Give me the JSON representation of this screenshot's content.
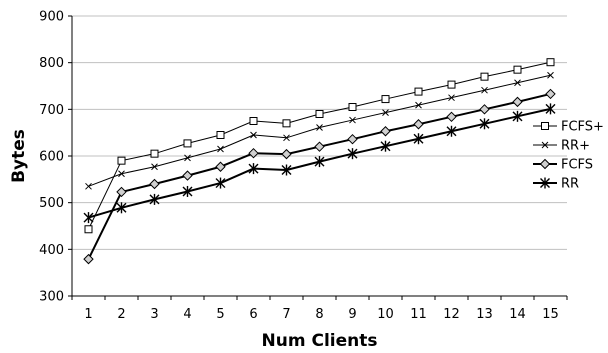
{
  "chart_data": {
    "type": "line",
    "xlabel": "Num Clients",
    "ylabel": "Bytes",
    "ylim": [
      300,
      900
    ],
    "yticks": [
      300,
      400,
      500,
      600,
      700,
      800,
      900
    ],
    "categories": [
      1,
      2,
      3,
      4,
      5,
      6,
      7,
      8,
      9,
      10,
      11,
      12,
      13,
      14,
      15
    ],
    "grid": "horizontal",
    "legend_position": "right",
    "series": [
      {
        "name": "FCFS+",
        "marker": "square",
        "line_width": 1,
        "values": [
          443,
          590,
          605,
          627,
          645,
          675,
          670,
          690,
          705,
          722,
          738,
          753,
          770,
          785,
          801
        ]
      },
      {
        "name": "RR+",
        "marker": "x",
        "line_width": 1,
        "values": [
          535,
          562,
          577,
          596,
          615,
          645,
          639,
          661,
          677,
          693,
          709,
          725,
          741,
          757,
          773
        ]
      },
      {
        "name": "FCFS",
        "marker": "diamond",
        "line_width": 2,
        "values": [
          379,
          523,
          540,
          558,
          577,
          606,
          604,
          620,
          636,
          653,
          668,
          684,
          700,
          716,
          733
        ]
      },
      {
        "name": "RR",
        "marker": "star",
        "line_width": 2,
        "values": [
          468,
          489,
          507,
          524,
          542,
          573,
          570,
          588,
          605,
          621,
          637,
          653,
          669,
          685,
          701
        ]
      }
    ]
  }
}
